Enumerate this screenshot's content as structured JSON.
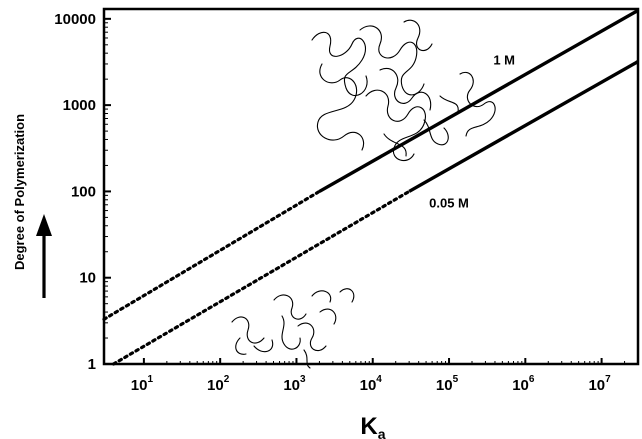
{
  "chart_data": {
    "type": "line",
    "title": "",
    "xlabel": "K",
    "xlabel_subscript": "a",
    "ylabel": "Degree of Polymerization",
    "x_scale": "log",
    "y_scale": "log",
    "xlim": [
      3,
      30000000
    ],
    "ylim": [
      1,
      13000
    ],
    "x_ticks": [
      {
        "value": 10,
        "base": "10",
        "exp": "1"
      },
      {
        "value": 100,
        "base": "10",
        "exp": "2"
      },
      {
        "value": 1000,
        "base": "10",
        "exp": "3"
      },
      {
        "value": 10000,
        "base": "10",
        "exp": "4"
      },
      {
        "value": 100000,
        "base": "10",
        "exp": "5"
      },
      {
        "value": 1000000,
        "base": "10",
        "exp": "6"
      },
      {
        "value": 10000000,
        "base": "10",
        "exp": "7"
      }
    ],
    "y_ticks": [
      {
        "value": 1,
        "label": "1"
      },
      {
        "value": 10,
        "label": "10"
      },
      {
        "value": 100,
        "label": "100"
      },
      {
        "value": 1000,
        "label": "1000"
      },
      {
        "value": 10000,
        "label": "10000"
      }
    ],
    "grid": false,
    "series": [
      {
        "name": "1 M",
        "color": "#000000",
        "dotted_segment": {
          "x": [
            3,
            2000
          ],
          "y": [
            3.3,
            100
          ]
        },
        "solid_segment": {
          "x": [
            2000,
            30000000
          ],
          "y": [
            100,
            12500
          ]
        }
      },
      {
        "name": "0.05 M",
        "color": "#000000",
        "dotted_segment": {
          "x": [
            4,
            30000
          ],
          "y": [
            1,
            100
          ]
        },
        "solid_segment": {
          "x": [
            30000,
            30000000
          ],
          "y": [
            100,
            3200
          ]
        }
      }
    ],
    "annotations": [
      {
        "type": "illustration",
        "icon": "long-polymer-chains-illustration",
        "near": {
          "x": 10000,
          "y": 1500
        }
      },
      {
        "type": "illustration",
        "icon": "short-oligomer-chains-illustration",
        "near": {
          "x": 1000,
          "y": 2
        }
      },
      {
        "type": "arrow",
        "icon": "up-arrow-icon",
        "placement": "left of y-axis"
      }
    ]
  }
}
